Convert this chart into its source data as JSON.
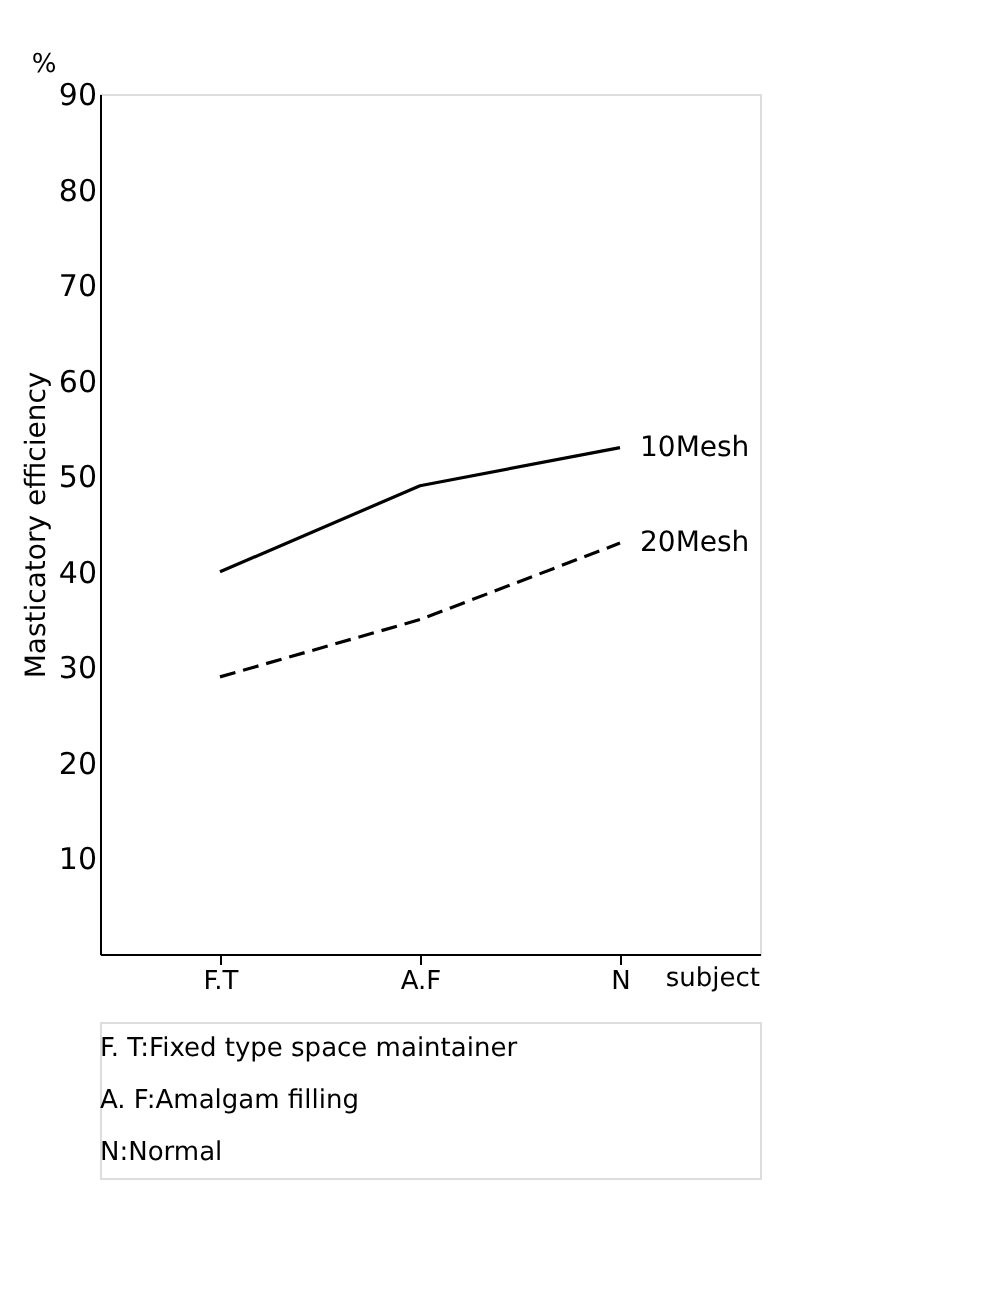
{
  "chart_data": {
    "type": "line",
    "ylabel": "Masticatory efficiency",
    "xlabel": "subject",
    "categories": [
      "F.T",
      "A.F",
      "N"
    ],
    "series": [
      {
        "name": "10Mesh",
        "color": "#000000",
        "values": [
          40,
          49,
          53
        ],
        "line_style": "solid"
      },
      {
        "name": "20Mesh",
        "color": "#000000",
        "values": [
          29,
          35,
          43
        ],
        "line_style": "dashed"
      }
    ],
    "ylim": [
      0,
      90
    ],
    "yticks": [
      10,
      20,
      30,
      40,
      50,
      60,
      70,
      80,
      90
    ],
    "grid": false,
    "marker": "none",
    "annotations": [
      "%",
      "F. T:Fixed type space maintainer",
      "A. F:Amalgam filling",
      "N:Normal"
    ]
  }
}
